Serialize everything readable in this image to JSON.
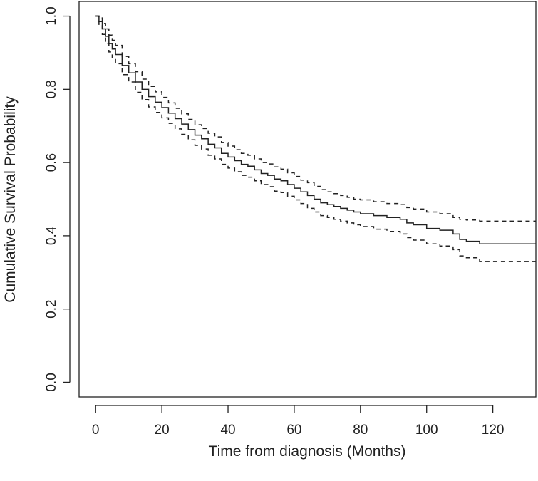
{
  "chart_data": {
    "type": "line",
    "title": "",
    "xlabel": "Time from diagnosis (Months)",
    "ylabel": "Cumulative Survival Probability",
    "xlim": [
      -5,
      133
    ],
    "ylim": [
      -0.04,
      1.04
    ],
    "xticks": [
      "0",
      "20",
      "40",
      "60",
      "80",
      "100",
      "120"
    ],
    "yticks": [
      "0.0",
      "0.2",
      "0.4",
      "0.6",
      "0.8",
      "1.0"
    ],
    "grid": false,
    "legend": "none",
    "series": [
      {
        "style": "solid",
        "color": "#222222",
        "x": [
          0,
          1,
          2,
          3,
          4,
          5,
          6,
          8,
          10,
          12,
          14,
          16,
          18,
          20,
          22,
          24,
          26,
          28,
          30,
          32,
          34,
          36,
          38,
          40,
          42,
          44,
          46,
          48,
          50,
          52,
          54,
          56,
          58,
          60,
          62,
          64,
          66,
          68,
          70,
          72,
          74,
          76,
          78,
          80,
          84,
          88,
          92,
          94,
          96,
          100,
          104,
          108,
          110,
          112,
          115,
          116,
          133
        ],
        "y": [
          1.0,
          0.985,
          0.965,
          0.945,
          0.925,
          0.91,
          0.895,
          0.865,
          0.845,
          0.82,
          0.8,
          0.78,
          0.765,
          0.75,
          0.735,
          0.72,
          0.705,
          0.69,
          0.675,
          0.665,
          0.65,
          0.64,
          0.625,
          0.615,
          0.605,
          0.595,
          0.59,
          0.58,
          0.57,
          0.565,
          0.555,
          0.55,
          0.54,
          0.53,
          0.52,
          0.51,
          0.5,
          0.49,
          0.485,
          0.48,
          0.475,
          0.47,
          0.465,
          0.46,
          0.455,
          0.45,
          0.445,
          0.435,
          0.43,
          0.42,
          0.415,
          0.405,
          0.39,
          0.385,
          0.385,
          0.378,
          0.378
        ]
      },
      {
        "style": "dashed",
        "color": "#222222",
        "x": [
          0,
          1,
          2,
          3,
          4,
          5,
          6,
          8,
          10,
          12,
          14,
          16,
          18,
          20,
          22,
          24,
          26,
          28,
          30,
          32,
          34,
          36,
          38,
          40,
          42,
          44,
          46,
          48,
          50,
          52,
          54,
          56,
          58,
          60,
          62,
          64,
          66,
          68,
          70,
          72,
          74,
          76,
          78,
          80,
          84,
          88,
          92,
          94,
          96,
          100,
          104,
          108,
          110,
          112,
          115,
          116,
          133
        ],
        "y": [
          1.0,
          0.995,
          0.98,
          0.965,
          0.948,
          0.934,
          0.92,
          0.89,
          0.87,
          0.848,
          0.828,
          0.808,
          0.793,
          0.778,
          0.763,
          0.748,
          0.733,
          0.718,
          0.703,
          0.693,
          0.68,
          0.67,
          0.655,
          0.645,
          0.635,
          0.625,
          0.62,
          0.61,
          0.6,
          0.596,
          0.588,
          0.582,
          0.572,
          0.562,
          0.552,
          0.545,
          0.535,
          0.526,
          0.52,
          0.515,
          0.51,
          0.505,
          0.5,
          0.498,
          0.493,
          0.488,
          0.485,
          0.477,
          0.473,
          0.465,
          0.46,
          0.45,
          0.445,
          0.443,
          0.443,
          0.44,
          0.44
        ]
      },
      {
        "style": "dashed",
        "color": "#222222",
        "x": [
          0,
          1,
          2,
          3,
          4,
          5,
          6,
          8,
          10,
          12,
          14,
          16,
          18,
          20,
          22,
          24,
          26,
          28,
          30,
          32,
          34,
          36,
          38,
          40,
          42,
          44,
          46,
          48,
          50,
          52,
          54,
          56,
          58,
          60,
          62,
          64,
          66,
          68,
          70,
          72,
          74,
          76,
          78,
          80,
          84,
          88,
          92,
          94,
          96,
          100,
          104,
          108,
          110,
          112,
          115,
          116,
          133
        ],
        "y": [
          1.0,
          0.975,
          0.95,
          0.925,
          0.902,
          0.886,
          0.87,
          0.84,
          0.82,
          0.792,
          0.772,
          0.752,
          0.737,
          0.722,
          0.707,
          0.692,
          0.677,
          0.662,
          0.647,
          0.637,
          0.62,
          0.61,
          0.595,
          0.585,
          0.575,
          0.565,
          0.56,
          0.55,
          0.54,
          0.534,
          0.522,
          0.518,
          0.508,
          0.498,
          0.488,
          0.475,
          0.465,
          0.455,
          0.45,
          0.445,
          0.44,
          0.435,
          0.43,
          0.425,
          0.418,
          0.412,
          0.405,
          0.395,
          0.388,
          0.378,
          0.372,
          0.362,
          0.345,
          0.34,
          0.34,
          0.33,
          0.33
        ]
      }
    ]
  }
}
